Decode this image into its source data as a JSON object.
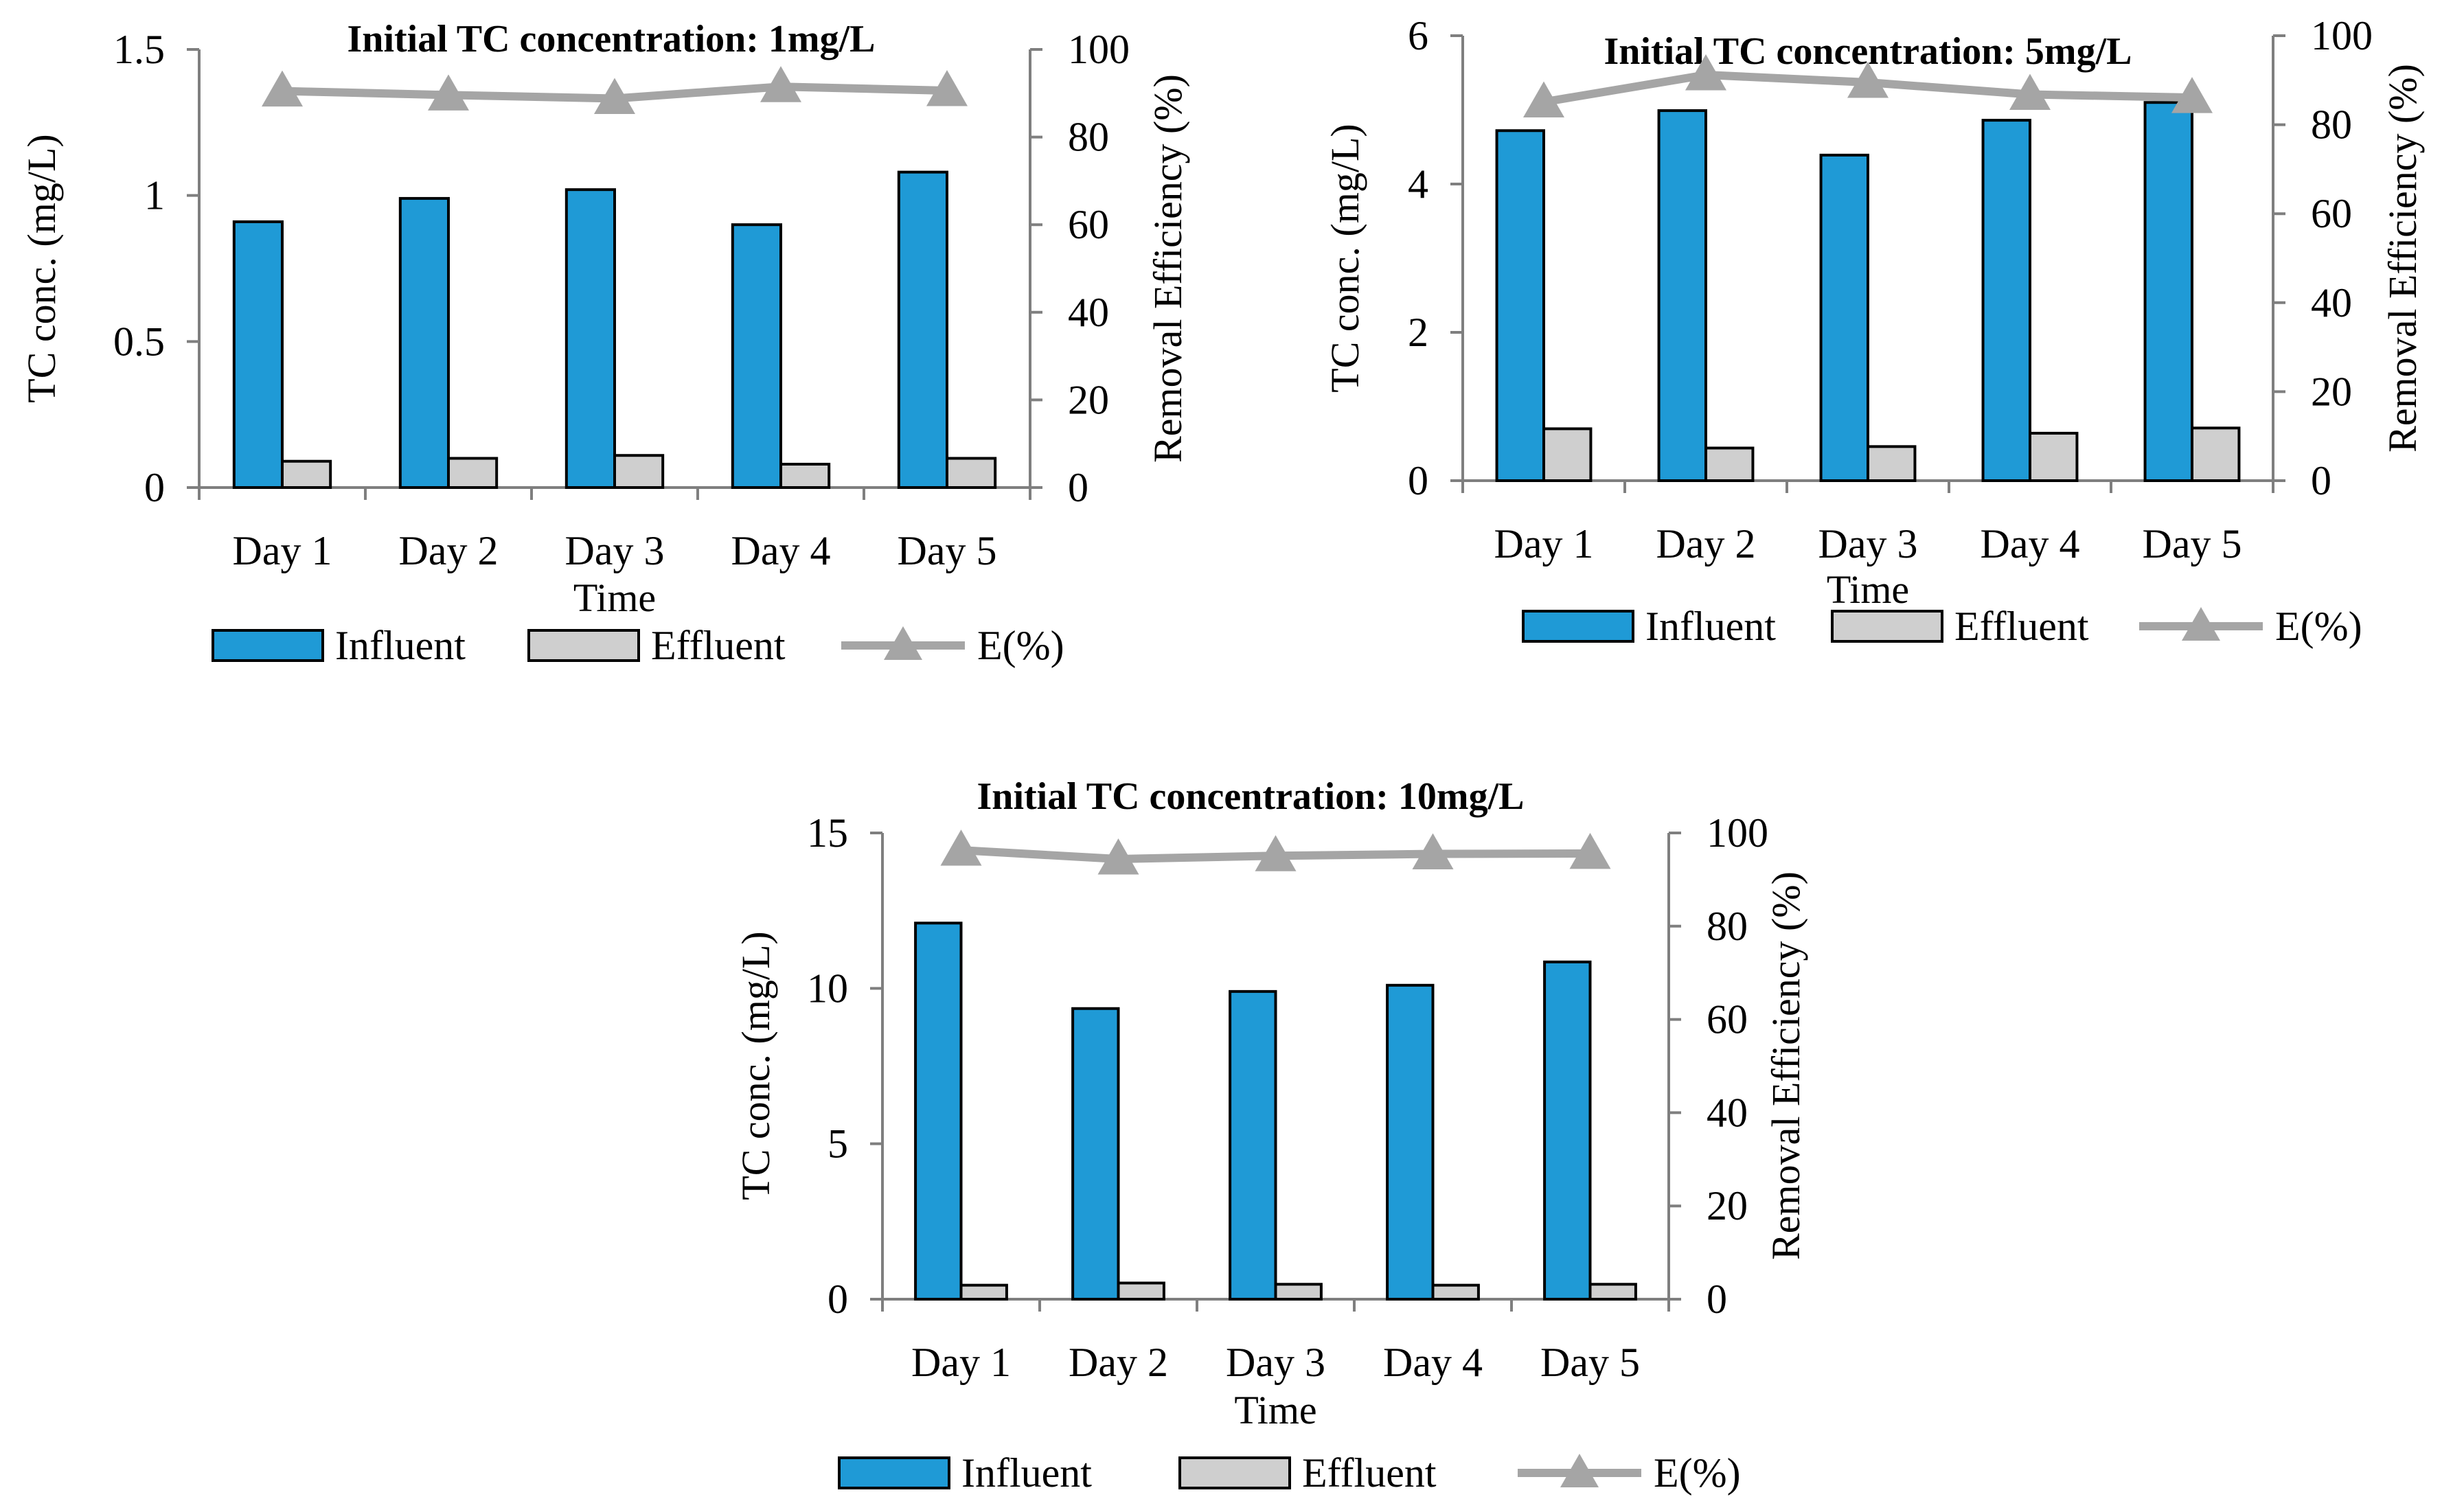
{
  "chart_data": [
    {
      "type": "bar",
      "title": "Initial TC concentration: 1mg/L",
      "categories": [
        "Day 1",
        "Day 2",
        "Day 3",
        "Day 4",
        "Day 5"
      ],
      "series": [
        {
          "name": "Influent",
          "axis": "left",
          "values": [
            0.91,
            0.99,
            1.02,
            0.9,
            1.08
          ],
          "color": "#1f9ad6"
        },
        {
          "name": "Effluent",
          "axis": "left",
          "values": [
            0.09,
            0.1,
            0.11,
            0.08,
            0.1
          ],
          "color": "#cfcfcf"
        },
        {
          "name": "E(%)",
          "axis": "right",
          "type": "line",
          "marker": "triangle",
          "values": [
            90.5,
            89.6,
            88.8,
            91.5,
            90.6
          ],
          "color": "#a5a5a5"
        }
      ],
      "xlabel": "Time",
      "ylabel": "TC conc. (mg/L)",
      "y2label": "Removal Efficiency (%)",
      "ylim": [
        0,
        1.5
      ],
      "yticks": [
        0,
        0.5,
        1,
        1.5
      ],
      "ytick_labels": [
        "0",
        "0.5",
        "1",
        "1.5"
      ],
      "y2lim": [
        0,
        100
      ],
      "y2ticks": [
        0,
        20,
        40,
        60,
        80,
        100
      ],
      "ytick_labels2": [
        "0",
        "20",
        "40",
        "60",
        "80",
        "100"
      ],
      "legend": [
        "Influent",
        "Effluent",
        "E(%)"
      ],
      "legend_position": "bottom"
    },
    {
      "type": "bar",
      "title": "Initial TC concentration: 5mg/L",
      "categories": [
        "Day 1",
        "Day 2",
        "Day 3",
        "Day 4",
        "Day 5"
      ],
      "series": [
        {
          "name": "Influent",
          "axis": "left",
          "values": [
            4.72,
            4.99,
            4.39,
            4.86,
            5.1
          ],
          "color": "#1f9ad6"
        },
        {
          "name": "Effluent",
          "axis": "left",
          "values": [
            0.7,
            0.44,
            0.46,
            0.64,
            0.71
          ],
          "color": "#cfcfcf"
        },
        {
          "name": "E(%)",
          "axis": "right",
          "type": "line",
          "marker": "triangle",
          "values": [
            85.1,
            91.2,
            89.5,
            86.8,
            86.1
          ],
          "color": "#a5a5a5"
        }
      ],
      "xlabel": "Time",
      "ylabel": "TC conc. (mg/L)",
      "y2label": "Removal Efficiency (%)",
      "ylim": [
        0,
        6
      ],
      "yticks": [
        0,
        2,
        4,
        6
      ],
      "ytick_labels": [
        "0",
        "2",
        "4",
        "6"
      ],
      "y2lim": [
        0,
        100
      ],
      "y2ticks": [
        0,
        20,
        40,
        60,
        80,
        100
      ],
      "ytick_labels2": [
        "0",
        "20",
        "40",
        "60",
        "80",
        "100"
      ],
      "legend": [
        "Influent",
        "Effluent",
        "E(%)"
      ],
      "legend_position": "bottom"
    },
    {
      "type": "bar",
      "title": "Initial TC concentration:  10mg/L",
      "categories": [
        "Day 1",
        "Day 2",
        "Day 3",
        "Day 4",
        "Day 5"
      ],
      "series": [
        {
          "name": "Influent",
          "axis": "left",
          "values": [
            12.1,
            9.35,
            9.9,
            10.1,
            10.85
          ],
          "color": "#1f9ad6"
        },
        {
          "name": "Effluent",
          "axis": "left",
          "values": [
            0.45,
            0.52,
            0.48,
            0.45,
            0.48
          ],
          "color": "#cfcfcf"
        },
        {
          "name": "E(%)",
          "axis": "right",
          "type": "line",
          "marker": "triangle",
          "values": [
            96.3,
            94.4,
            95.1,
            95.5,
            95.6
          ],
          "color": "#a5a5a5"
        }
      ],
      "xlabel": "Time",
      "ylabel": "TC conc. (mg/L)",
      "y2label": "Removal Efficiency (%)",
      "ylim": [
        0,
        15
      ],
      "yticks": [
        0,
        5,
        10,
        15
      ],
      "ytick_labels": [
        "0",
        "5",
        "10",
        "15"
      ],
      "y2lim": [
        0,
        100
      ],
      "y2ticks": [
        0,
        20,
        40,
        60,
        80,
        100
      ],
      "ytick_labels2": [
        "0",
        "20",
        "40",
        "60",
        "80",
        "100"
      ],
      "legend": [
        "Influent",
        "Effluent",
        "E(%)"
      ],
      "legend_position": "bottom"
    }
  ]
}
